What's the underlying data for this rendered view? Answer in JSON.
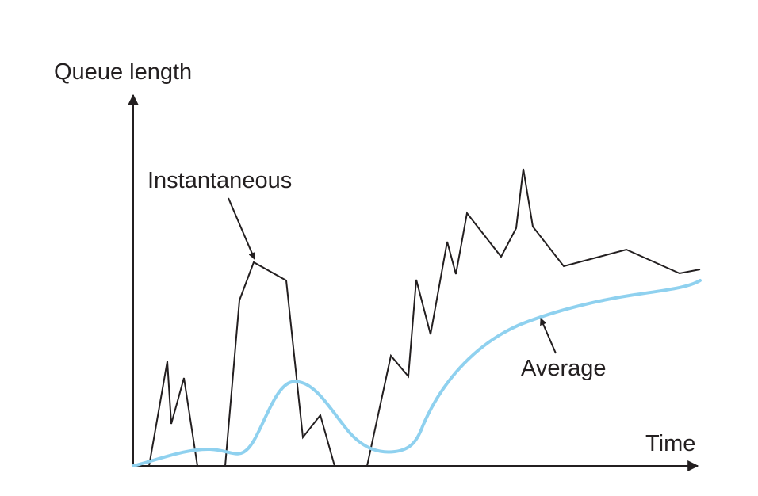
{
  "diagram": {
    "y_axis_label": "Queue length",
    "x_axis_label": "Time",
    "annotations": {
      "instantaneous": "Instantaneous",
      "average": "Average"
    },
    "colors": {
      "instantaneous_line": "#231f20",
      "average_line": "#8fd1ef",
      "axes": "#231f20",
      "background": "#ffffff"
    }
  }
}
